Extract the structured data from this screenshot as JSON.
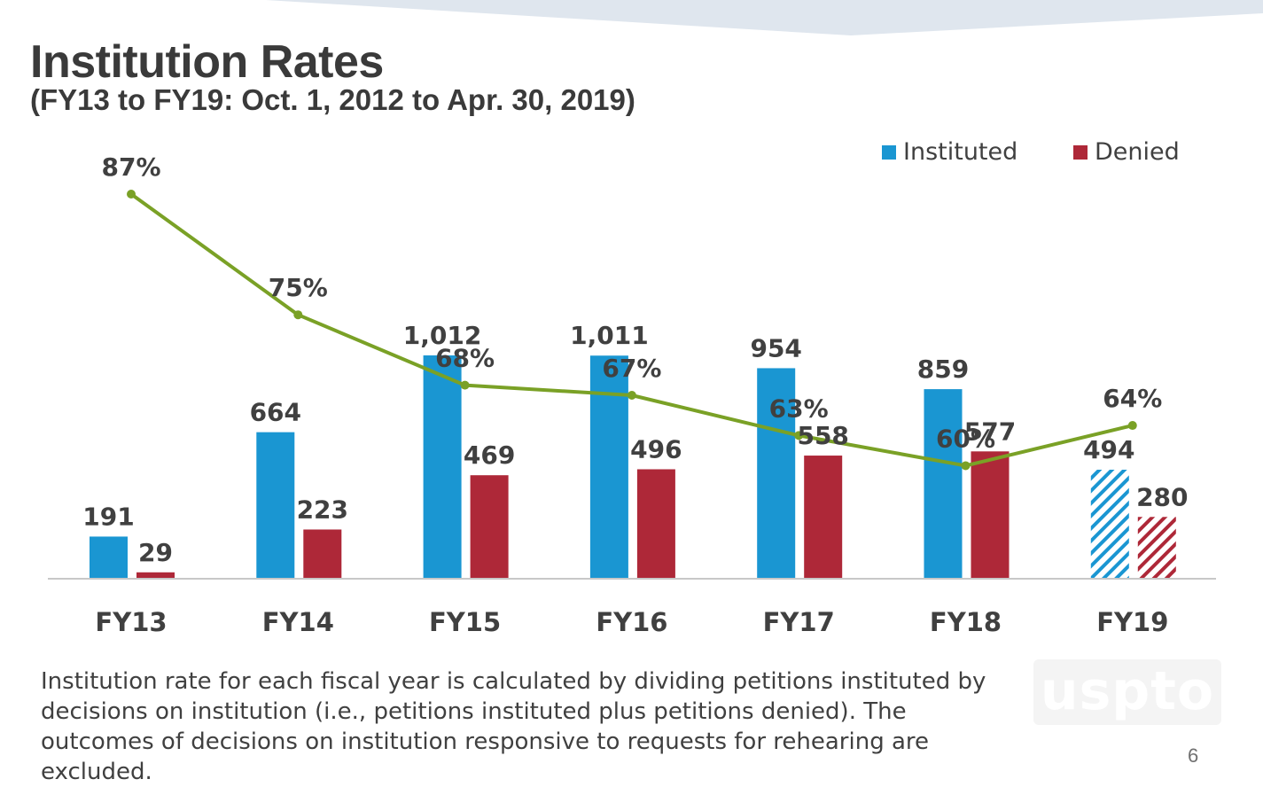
{
  "slide": {
    "title": "Institution Rates",
    "subtitle": "(FY13 to FY19: Oct. 1, 2012 to Apr. 30, 2019)",
    "footnote": "Institution rate for each fiscal year is calculated by dividing petitions instituted by decisions on institution (i.e., petitions instituted plus petitions denied). The outcomes of decisions on institution responsive to requests for rehearing are excluded.",
    "logo_text": "uspto",
    "page_number": "6"
  },
  "chart_data": {
    "type": "bar",
    "title": "Institution Rates",
    "categories": [
      "FY13",
      "FY14",
      "FY15",
      "FY16",
      "FY17",
      "FY18",
      "FY19"
    ],
    "bar_labels": {
      "instituted": [
        "191",
        "664",
        "1,012",
        "1,011",
        "954",
        "859",
        "494"
      ],
      "denied": [
        "29",
        "223",
        "469",
        "496",
        "558",
        "577",
        "280"
      ],
      "rate": [
        "87%",
        "75%",
        "68%",
        "67%",
        "63%",
        "60%",
        "64%"
      ]
    },
    "series": [
      {
        "name": "Instituted",
        "type": "bar",
        "color": "#1a96d2",
        "values": [
          191,
          664,
          1012,
          1011,
          954,
          859,
          494
        ]
      },
      {
        "name": "Denied",
        "type": "bar",
        "color": "#ae2838",
        "values": [
          29,
          223,
          469,
          496,
          558,
          577,
          280
        ]
      },
      {
        "name": "Institution rate",
        "type": "line",
        "color": "#7aa126",
        "values": [
          87,
          75,
          68,
          67,
          63,
          60,
          64
        ]
      }
    ],
    "partial_year_category": "FY19",
    "ylim": [
      0,
      1012
    ],
    "legend": {
      "position": "top-right",
      "items": [
        "Instituted",
        "Denied"
      ]
    },
    "grid": false
  }
}
